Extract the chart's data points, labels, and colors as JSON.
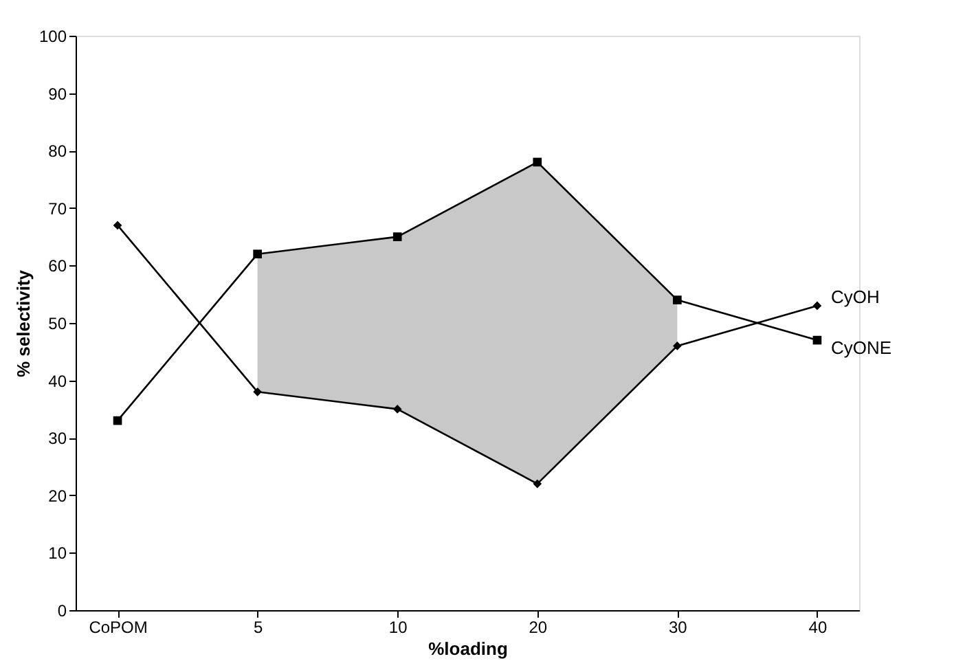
{
  "chart_data": {
    "type": "line",
    "xlabel": "%loading",
    "ylabel": "% selectivity",
    "categories": [
      "CoPOM",
      "5",
      "10",
      "20",
      "30",
      "40"
    ],
    "series": [
      {
        "name": "CyOH",
        "color": "#000000",
        "marker": "diamond",
        "values": [
          67,
          38,
          35,
          22,
          46,
          53
        ]
      },
      {
        "name": "CyONE",
        "color": "#000000",
        "marker": "square",
        "values": [
          33,
          62,
          65,
          78,
          54,
          47
        ],
        "lower": [
          null,
          38,
          35,
          22,
          46,
          null
        ],
        "upper": [
          null,
          62,
          65,
          78,
          54,
          null
        ]
      }
    ],
    "ylim": [
      0,
      100
    ],
    "yticks": [
      0,
      10,
      20,
      30,
      40,
      50,
      60,
      70,
      80,
      90,
      100
    ],
    "grid": false,
    "line_style": "solid"
  }
}
